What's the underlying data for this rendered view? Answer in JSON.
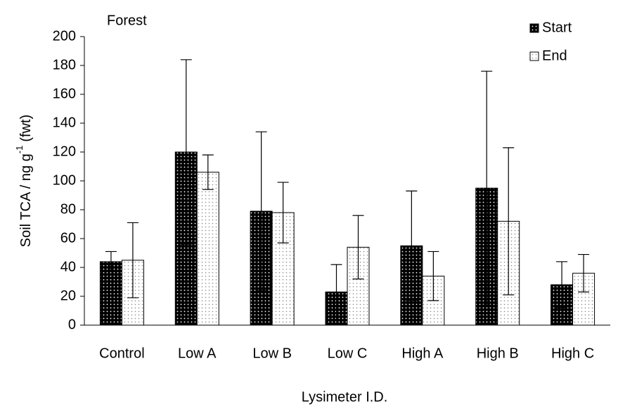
{
  "chart_data": {
    "type": "bar",
    "annotation": "Forest",
    "ylabel": {
      "main": "Soil TCA / ng g",
      "sup": "-1",
      "tail": "(fwt)"
    },
    "xlabel": "Lysimeter I.D.",
    "categories": [
      "Control",
      "Low A",
      "Low B",
      "Low C",
      "High A",
      "High B",
      "High C"
    ],
    "series": [
      {
        "name": "Start",
        "color": "#000000",
        "values": [
          44,
          120,
          79,
          23,
          55,
          95,
          28
        ],
        "errors": [
          7,
          64,
          55,
          19,
          38,
          81,
          16
        ]
      },
      {
        "name": "End",
        "color": "#ffffff",
        "values": [
          45,
          106,
          78,
          54,
          34,
          72,
          36
        ],
        "errors": [
          26,
          12,
          21,
          22,
          17,
          51,
          13
        ]
      }
    ],
    "ylim": [
      0,
      200
    ],
    "yticks": [
      0,
      20,
      40,
      60,
      80,
      100,
      120,
      140,
      160,
      180,
      200
    ]
  }
}
